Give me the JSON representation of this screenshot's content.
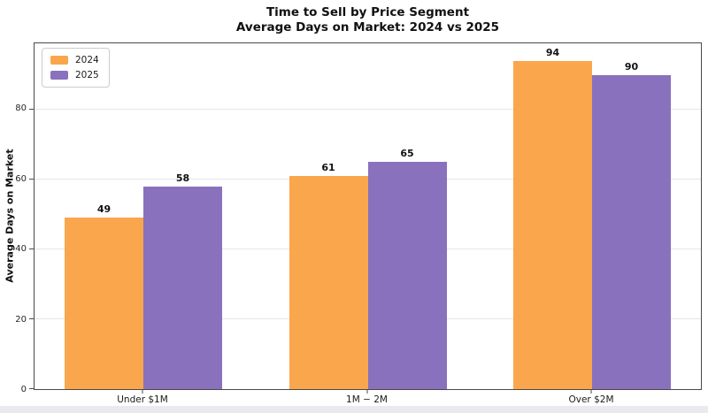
{
  "chart_data": {
    "type": "bar",
    "title": "Time to Sell by Price Segment",
    "subtitle": "Average Days on Market: 2024 vs 2025",
    "categories": [
      "Under $1M",
      "1M − 2M",
      "Over $2M"
    ],
    "series": [
      {
        "name": "2024",
        "color": "#FAA64C",
        "values": [
          49,
          61,
          94
        ]
      },
      {
        "name": "2025",
        "color": "#8A71BE",
        "values": [
          58,
          65,
          90
        ]
      }
    ],
    "ylabel": "Average Days on Market",
    "xlabel": "",
    "ylim": [
      0,
      99
    ],
    "yticks": [
      0,
      20,
      40,
      60,
      80
    ],
    "grid": true,
    "bar_labels": true,
    "legend_position": "upper-left"
  },
  "colors": {
    "bar_2024": "#FAA64C",
    "bar_2025": "#8A71BE",
    "spine": "#4a4a4a",
    "gridline": "#e6e6e6",
    "tick_label": "#262626",
    "figure_background": "#ffffff",
    "bottom_strip": "#e9e9ee"
  }
}
